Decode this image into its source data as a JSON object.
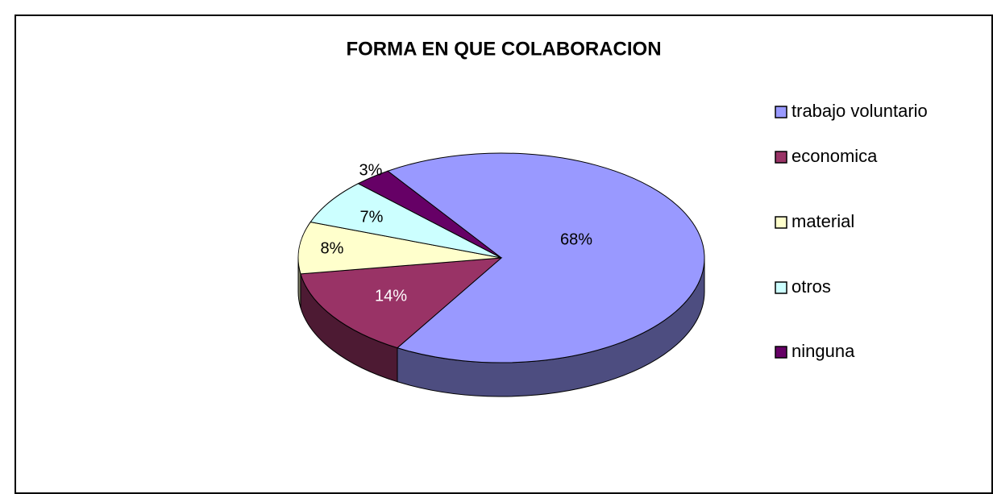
{
  "chart_data": {
    "type": "pie",
    "title": "FORMA EN QUE COLABORACION",
    "categories": [
      "trabajo voluntario",
      "economica",
      "material",
      "otros",
      "ninguna"
    ],
    "values": [
      68,
      14,
      8,
      7,
      3
    ],
    "value_labels": [
      "68%",
      "14%",
      "8%",
      "7%",
      "3%"
    ],
    "colors": [
      "#9999ff",
      "#993366",
      "#ffffcc",
      "#ccffff",
      "#660066"
    ],
    "legend": "right"
  }
}
